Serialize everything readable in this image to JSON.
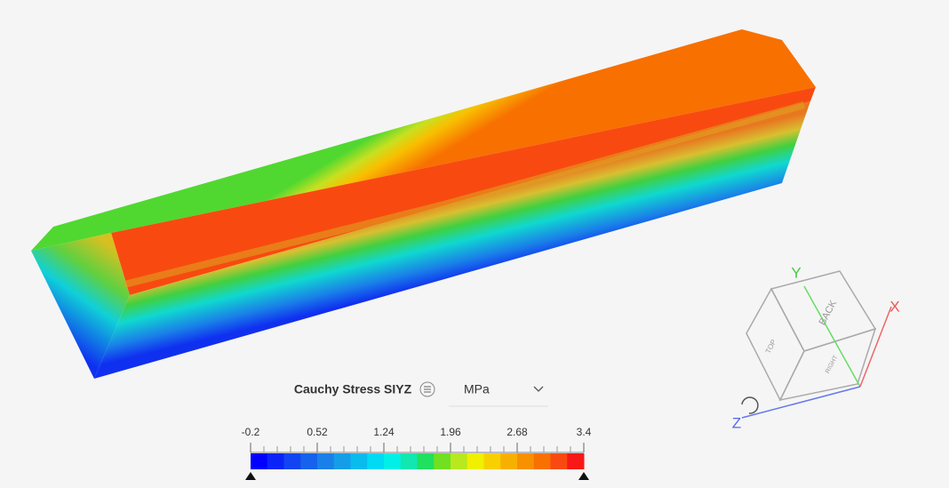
{
  "legend": {
    "title": "Cauchy Stress SIYZ",
    "unit": "MPa",
    "ticks": [
      -0.2,
      0.52,
      1.24,
      1.96,
      2.68,
      3.4
    ],
    "colors": [
      "#0000ff",
      "#0a24f8",
      "#1244f2",
      "#1662ec",
      "#1a80e8",
      "#149ee8",
      "#0abcee",
      "#00daf4",
      "#00f0e8",
      "#10e8b0",
      "#20e060",
      "#70e020",
      "#b8e820",
      "#f0f000",
      "#f8d000",
      "#f8b000",
      "#f89000",
      "#f87000",
      "#f84a10",
      "#f81818"
    ]
  },
  "orientation_cube": {
    "axes": [
      "Y",
      "X",
      "Z"
    ],
    "faces": [
      "BACK",
      "TOP",
      "RIGHT"
    ]
  }
}
